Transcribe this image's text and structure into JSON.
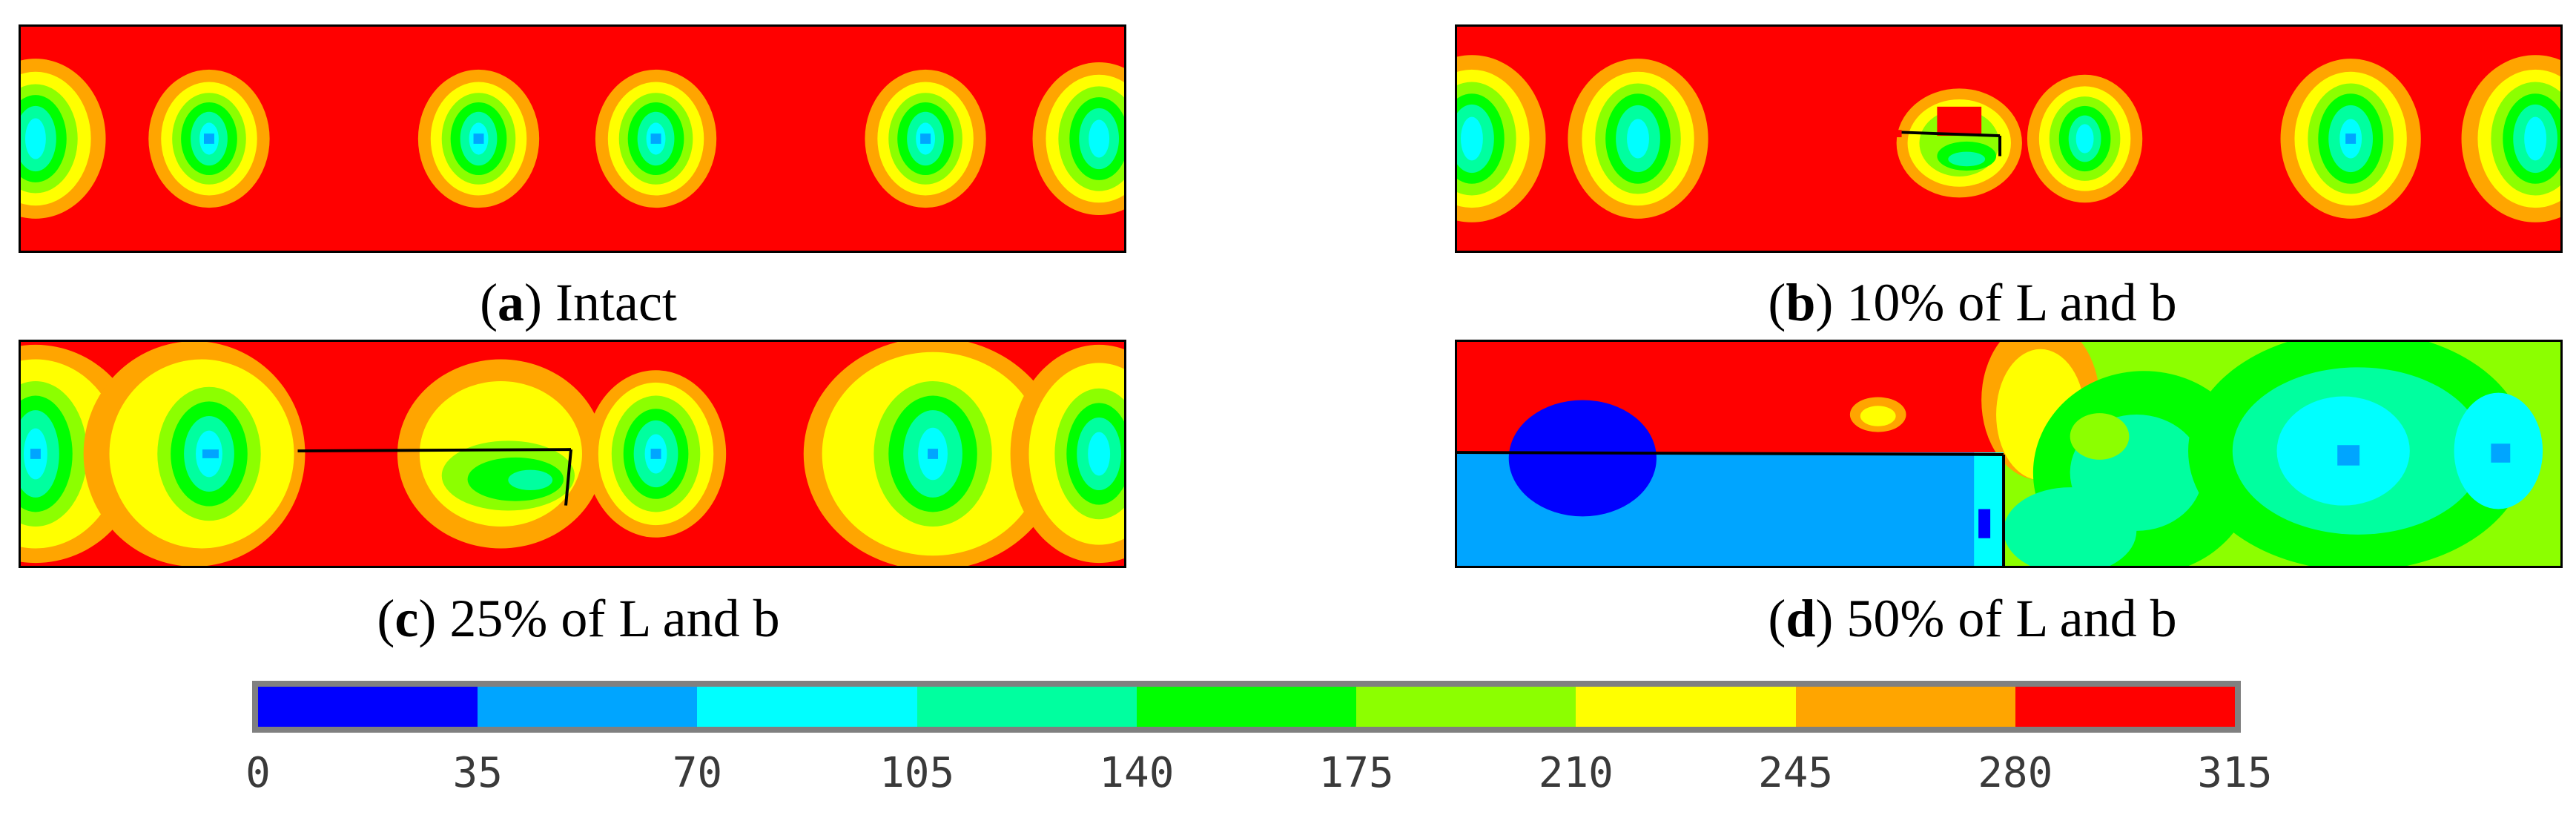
{
  "panels": [
    {
      "letter": "a",
      "label": "Intact"
    },
    {
      "letter": "b",
      "label": "10% of L and b"
    },
    {
      "letter": "c",
      "label": "25% of L and b"
    },
    {
      "letter": "d",
      "label": "50% of L and b"
    }
  ],
  "colorbar": {
    "ticks": [
      "0",
      "35",
      "70",
      "105",
      "140",
      "175",
      "210",
      "245",
      "280",
      "315"
    ],
    "colors": [
      "#0000ff",
      "#00a5ff",
      "#00ffff",
      "#00ff9f",
      "#00ff00",
      "#8cff00",
      "#ffff00",
      "#ffa500",
      "#ff0000"
    ]
  }
}
